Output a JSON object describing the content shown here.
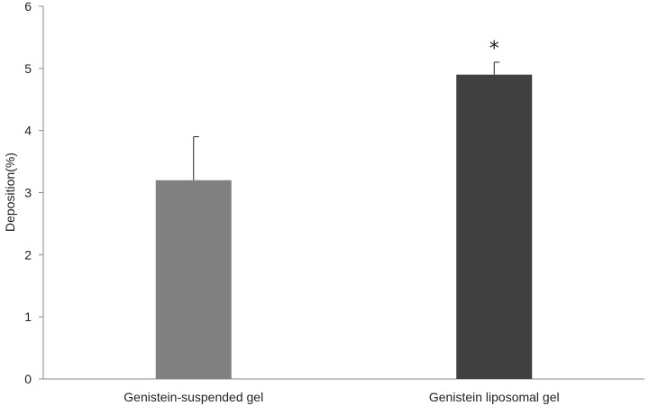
{
  "chart_data": {
    "type": "bar",
    "categories": [
      "Genistein-suspended gel",
      "Genistein liposomal gel"
    ],
    "values": [
      3.2,
      4.9
    ],
    "error_plus": [
      0.7,
      0.2
    ],
    "colors": [
      "#808080",
      "#404040"
    ],
    "annotations": [
      "",
      "*"
    ],
    "title": "",
    "xlabel": "",
    "ylabel": "Deposition(%)",
    "ylim": [
      0,
      6
    ],
    "yticks": [
      0,
      1,
      2,
      3,
      4,
      5,
      6
    ],
    "grid": false,
    "legend": "none"
  }
}
